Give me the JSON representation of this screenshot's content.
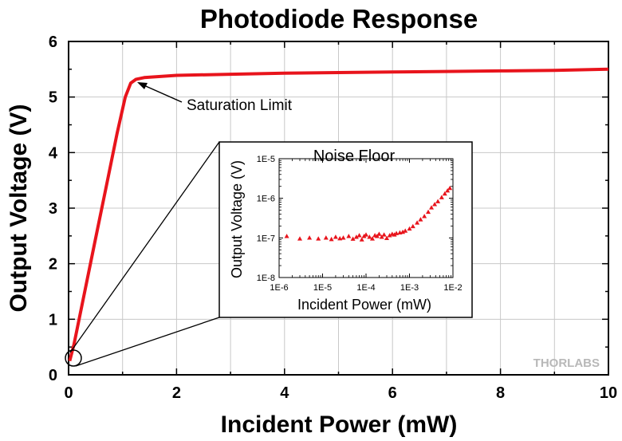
{
  "watermark": "THORLABS",
  "chart_data": [
    {
      "type": "line",
      "title": "Photodiode Response",
      "xlabel": "Incident Power (mW)",
      "ylabel": "Output Voltage (V)",
      "xlim": [
        0,
        10
      ],
      "ylim": [
        0,
        6
      ],
      "x_ticks": [
        0,
        2,
        4,
        6,
        8,
        10
      ],
      "y_ticks": [
        0,
        1,
        2,
        3,
        4,
        5,
        6
      ],
      "grid": true,
      "series_color": "#e8141c",
      "series": [
        {
          "x": [
            0.02,
            0.1,
            0.3,
            0.5,
            0.7,
            0.9,
            1.05,
            1.15,
            1.25,
            1.4,
            1.7,
            2,
            3,
            4,
            5,
            6,
            7,
            8,
            9,
            10
          ],
          "y": [
            0.25,
            0.55,
            1.5,
            2.45,
            3.4,
            4.35,
            5.0,
            5.25,
            5.32,
            5.35,
            5.37,
            5.39,
            5.41,
            5.43,
            5.44,
            5.45,
            5.46,
            5.47,
            5.48,
            5.5
          ]
        }
      ],
      "annotations": [
        {
          "text": "Saturation Limit",
          "x": 1.3,
          "y": 5.3
        }
      ]
    },
    {
      "type": "scatter",
      "title": "Noise Floor",
      "xlabel": "Incident Power (mW)",
      "ylabel": "Output Voltage (V)",
      "x_scale": "log",
      "y_scale": "log",
      "xlim": [
        1e-06,
        0.01
      ],
      "ylim": [
        1e-08,
        1e-05
      ],
      "x_tick_labels": [
        "1E-6",
        "1E-5",
        "1E-4",
        "1E-3",
        "1E-2"
      ],
      "y_tick_labels": [
        "1E-8",
        "1E-7",
        "1E-6",
        "1E-5"
      ],
      "marker": "triangle",
      "series_color": "#e8141c",
      "series": [
        {
          "x": [
            1.5e-06,
            3e-06,
            5e-06,
            8e-06,
            1.2e-05,
            1.6e-05,
            2e-05,
            2.5e-05,
            3e-05,
            4e-05,
            5e-05,
            6e-05,
            7e-05,
            8e-05,
            9e-05,
            0.0001,
            0.00012,
            0.00014,
            0.00016,
            0.00018,
            0.0002,
            0.00023,
            0.00026,
            0.0003,
            0.00035,
            0.0004,
            0.00045,
            0.0005,
            0.0006,
            0.0007,
            0.0008,
            0.001,
            0.0012,
            0.0015,
            0.0018,
            0.0022,
            0.0027,
            0.0032,
            0.0038,
            0.0045,
            0.0055,
            0.0065,
            0.0075,
            0.0085
          ],
          "y": [
            1.1e-07,
            9.5e-08,
            1e-07,
            9.5e-08,
            1e-07,
            9.2e-08,
            1.05e-07,
            9.6e-08,
            1e-07,
            1.1e-07,
            9.4e-08,
            1.05e-07,
            1.15e-07,
            9e-08,
            1.1e-07,
            1.2e-07,
            1.05e-07,
            9.5e-08,
            1.15e-07,
            1.1e-07,
            1.25e-07,
            1.05e-07,
            1.2e-07,
            9.8e-08,
            1.15e-07,
            1.25e-07,
            1.2e-07,
            1.3e-07,
            1.35e-07,
            1.4e-07,
            1.5e-07,
            1.7e-07,
            1.95e-07,
            2.4e-07,
            2.9e-07,
            3.5e-07,
            4.5e-07,
            5.8e-07,
            7e-07,
            8.3e-07,
            1.05e-06,
            1.3e-06,
            1.55e-06,
            1.8e-06
          ]
        }
      ]
    }
  ]
}
